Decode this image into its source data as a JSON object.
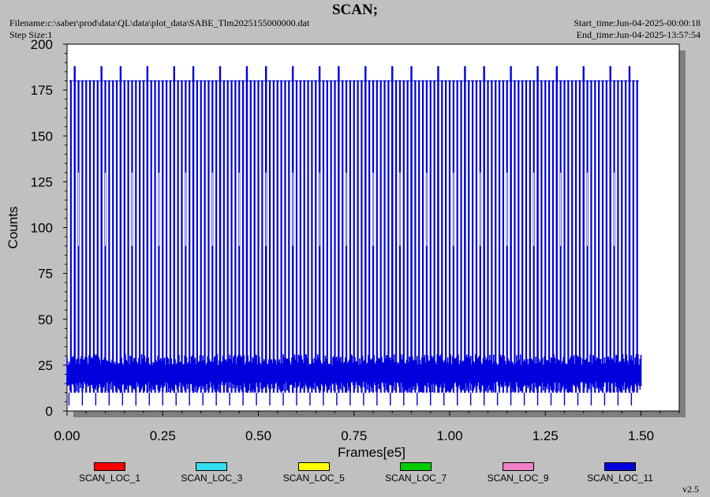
{
  "header": {
    "title": "SCAN;",
    "filename": "Filename:c:\\saber\\prod\\data\\QL\\data\\plot_data\\SABE_Tlm2025155000000.dat",
    "step_size": "Step Size:1",
    "start_time": "Start_time:Jun-04-2025-00:00:18",
    "end_time": "End_time:Jun-04-2025-13:57:54"
  },
  "footer": {
    "version": "v2.5"
  },
  "chart_data": {
    "type": "line",
    "title": "SCAN;",
    "xlabel": "Frames[e5]",
    "ylabel": "Counts",
    "xlim": [
      0,
      1.6
    ],
    "ylim": [
      0,
      200
    ],
    "x_ticks": [
      "0.00",
      "0.25",
      "0.50",
      "0.75",
      "1.00",
      "1.25",
      "1.50"
    ],
    "y_ticks": [
      "0",
      "25",
      "50",
      "75",
      "100",
      "125",
      "150",
      "175",
      "200"
    ],
    "grid": false,
    "legend_position": "bottom",
    "legend": [
      {
        "name": "SCAN_LOC_1",
        "color": "#ff0000"
      },
      {
        "name": "SCAN_LOC_3",
        "color": "#33ddf0"
      },
      {
        "name": "SCAN_LOC_5",
        "color": "#ffff00"
      },
      {
        "name": "SCAN_LOC_7",
        "color": "#00cc00"
      },
      {
        "name": "SCAN_LOC_9",
        "color": "#f080c8"
      },
      {
        "name": "SCAN_LOC_11",
        "color": "#0000dd"
      }
    ],
    "visible_series": "SCAN_LOC_11",
    "x_range": [
      0.0,
      1.5
    ],
    "baseline_band": [
      10,
      31
    ],
    "plateau_level": 180,
    "spike_level": 188,
    "spike_x": [
      0.02,
      0.09,
      0.14,
      0.21,
      0.28,
      0.33,
      0.4,
      0.47,
      0.52,
      0.59,
      0.66,
      0.71,
      0.78,
      0.85,
      0.9,
      0.97,
      1.04,
      1.09,
      1.16,
      1.23,
      1.28,
      1.35,
      1.42,
      1.47
    ]
  }
}
